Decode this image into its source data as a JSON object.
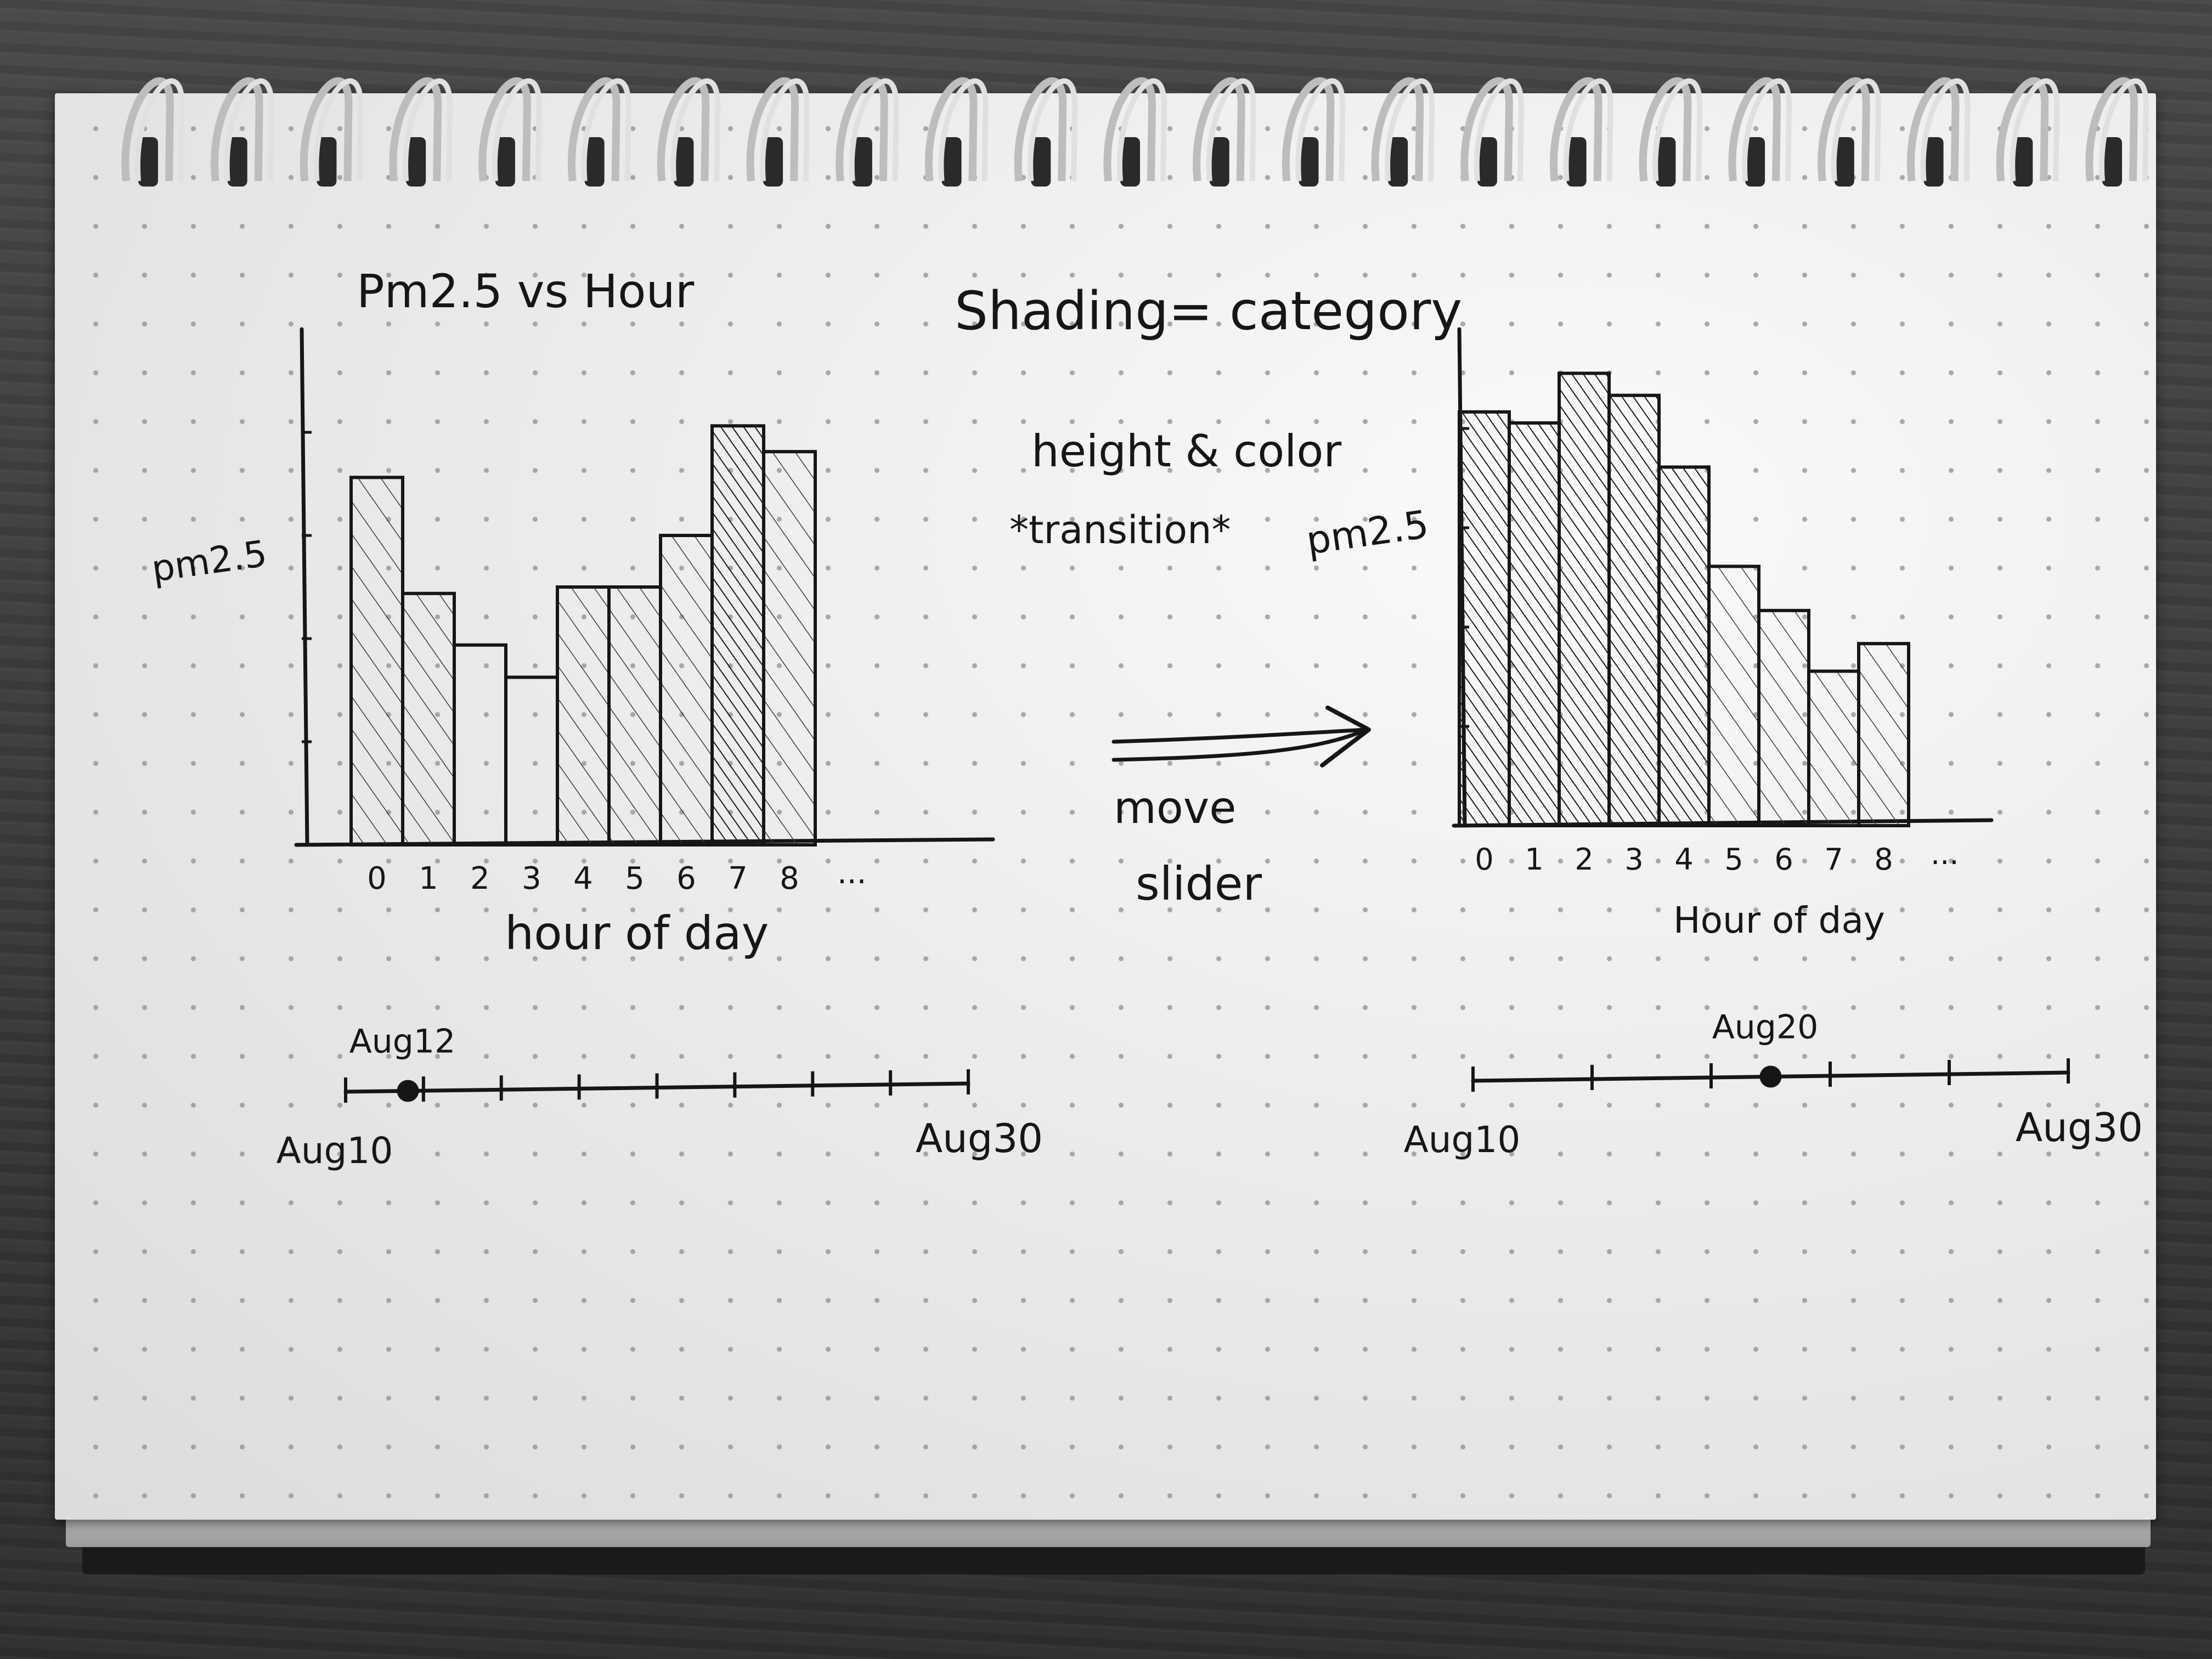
{
  "notes": {
    "shading": "Shading= category",
    "height_color": "height & color",
    "transition": "*transition*",
    "move_slider": [
      "move",
      "slider"
    ]
  },
  "chart_data": [
    {
      "type": "bar",
      "title": "Pm2.5 vs Hour",
      "xlabel": "hour of day",
      "ylabel": "pm2.5",
      "categories": [
        "0",
        "1",
        "2",
        "3",
        "4",
        "5",
        "6",
        "7",
        "8"
      ],
      "extra_tick": "...",
      "values": [
        5.7,
        3.9,
        3.1,
        2.6,
        4.0,
        4.0,
        4.8,
        6.5,
        6.1
      ],
      "shading": [
        "light",
        "light",
        "none",
        "none",
        "light",
        "light",
        "light",
        "dense",
        "light"
      ],
      "ylim": [
        0,
        8
      ],
      "slider": {
        "start_label": "Aug10",
        "end_label": "Aug30",
        "selected_label": "Aug12",
        "selected_value": 12,
        "range": [
          10,
          30
        ],
        "ticks": 9
      }
    },
    {
      "type": "bar",
      "title": "",
      "xlabel": "Hour of day",
      "ylabel": "pm2.5",
      "categories": [
        "0",
        "1",
        "2",
        "3",
        "4",
        "5",
        "6",
        "7",
        "8"
      ],
      "extra_tick": "...",
      "values": [
        7.5,
        7.3,
        8.2,
        7.8,
        6.5,
        4.7,
        3.9,
        2.8,
        3.3
      ],
      "shading": [
        "dense",
        "dense",
        "dense",
        "dense",
        "dense",
        "light",
        "light",
        "light",
        "light"
      ],
      "ylim": [
        0,
        9
      ],
      "slider": {
        "start_label": "Aug10",
        "end_label": "Aug30",
        "selected_label": "Aug20",
        "selected_value": 20,
        "range": [
          10,
          30
        ],
        "ticks": 6
      }
    }
  ],
  "colors": {
    "ink": "#161616",
    "paper": "#e8e8e8"
  }
}
